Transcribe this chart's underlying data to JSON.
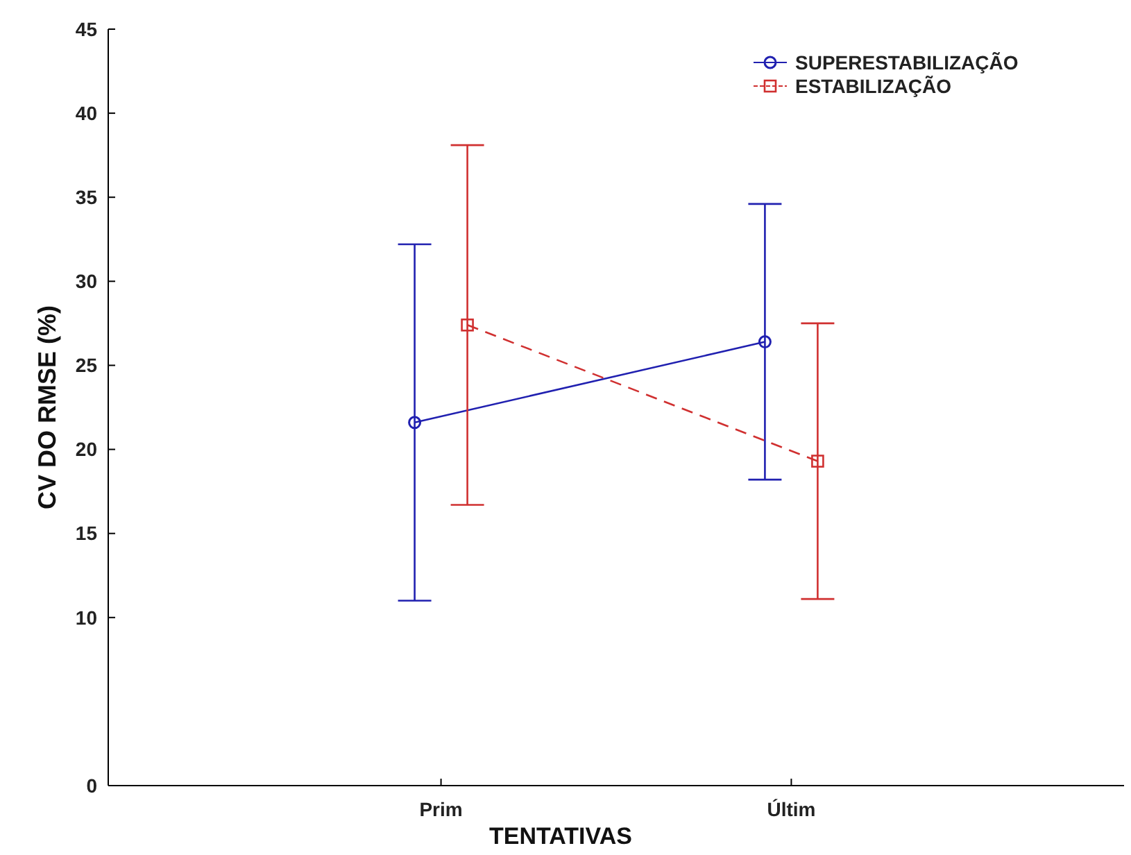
{
  "chart_data": {
    "type": "line",
    "xlabel": "TENTATIVAS",
    "ylabel": "CV DO RMSE (%)",
    "categories": [
      "Prim",
      "Últim"
    ],
    "series": [
      {
        "name": "SUPERESTABILIZAÇÃO",
        "color": "#2020b0",
        "values": [
          21.6,
          26.4
        ],
        "errors": [
          10.6,
          8.2
        ],
        "marker": "circle",
        "line_style": "solid"
      },
      {
        "name": "ESTABILIZAÇÃO",
        "color": "#d03030",
        "values": [
          27.4,
          19.3
        ],
        "errors": [
          10.7,
          8.2
        ],
        "marker": "square",
        "line_style": "dashed"
      }
    ],
    "ylim": [
      0,
      45
    ],
    "yticks": [
      0,
      10,
      15,
      20,
      25,
      30,
      35,
      40,
      45
    ],
    "grid": false,
    "legend": "top right"
  }
}
